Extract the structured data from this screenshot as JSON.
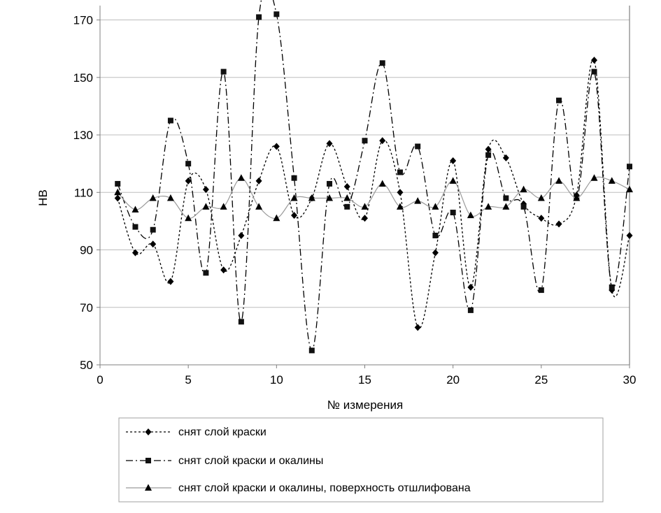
{
  "chart_data": {
    "type": "line",
    "title": "",
    "xlabel": "№ измерения",
    "ylabel": "HB",
    "xlim": [
      0,
      30
    ],
    "ylim": [
      50,
      175
    ],
    "x_ticks": [
      0,
      5,
      10,
      15,
      20,
      25,
      30
    ],
    "y_ticks": [
      50,
      70,
      90,
      110,
      130,
      150,
      170
    ],
    "grid": "horizontal",
    "legend_position": "bottom",
    "x": [
      1,
      2,
      3,
      4,
      5,
      6,
      7,
      8,
      9,
      10,
      11,
      12,
      13,
      14,
      15,
      16,
      17,
      18,
      19,
      20,
      21,
      22,
      23,
      24,
      25,
      26,
      27,
      28,
      29,
      30
    ],
    "series": [
      {
        "name": "снят слой краски",
        "marker": "diamond",
        "line": "dotted",
        "color": "#000000",
        "values": [
          108,
          89,
          92,
          79,
          114,
          111,
          83,
          95,
          114,
          126,
          102,
          108,
          127,
          112,
          101,
          128,
          110,
          63,
          89,
          121,
          77,
          125,
          122,
          106,
          101,
          99,
          109,
          156,
          76,
          95
        ]
      },
      {
        "name": "снят слой краски и окалины",
        "marker": "square",
        "line": "dashdot",
        "color": "#000000",
        "values": [
          113,
          98,
          97,
          135,
          120,
          82,
          152,
          65,
          171,
          172,
          115,
          55,
          113,
          105,
          128,
          155,
          117,
          126,
          95,
          103,
          69,
          123,
          108,
          105,
          76,
          142,
          108,
          152,
          77,
          119
        ]
      },
      {
        "name": "снят слой краски и окалины, поверхность отшлифована",
        "marker": "triangle",
        "line": "solid",
        "color": "#9a9a9a",
        "values": [
          110,
          104,
          108,
          108,
          101,
          105,
          105,
          115,
          105,
          101,
          108,
          108,
          108,
          108,
          105,
          113,
          105,
          107,
          105,
          114,
          102,
          105,
          105,
          111,
          108,
          114,
          108,
          115,
          114,
          111
        ]
      }
    ]
  }
}
